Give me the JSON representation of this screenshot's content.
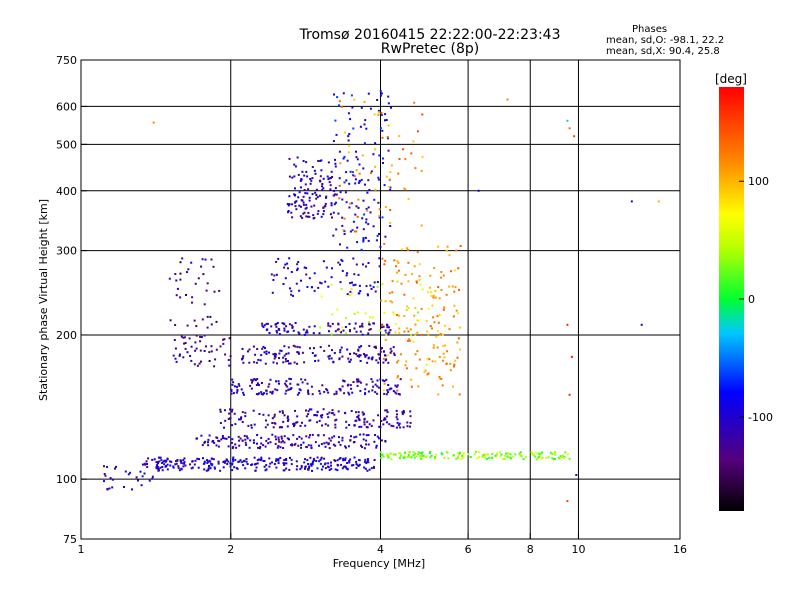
{
  "header": {
    "title_line1": "Tromsø 20160415 22:22:00-22:23:43",
    "title_line2": "RwPretec (8p)"
  },
  "stats": {
    "heading": "Phases",
    "line_o": "mean, sd,O: -98.1, 22.2",
    "line_x": "mean, sd,X:  90.4, 25.8"
  },
  "chart_data": {
    "type": "scatter",
    "xlabel": "Frequency [MHz]",
    "ylabel": "Stationary phase Virtual Height [km]",
    "x_scale": "log",
    "y_scale": "log",
    "xlim": [
      1,
      16
    ],
    "ylim": [
      75,
      750
    ],
    "x_ticks": [
      1,
      2,
      4,
      6,
      8,
      10,
      16
    ],
    "x_tick_labels": [
      "1",
      "2",
      "4",
      "6",
      "8",
      "10",
      "16"
    ],
    "x_grid": [
      2,
      4,
      6,
      8,
      10
    ],
    "y_ticks": [
      75,
      100,
      200,
      300,
      400,
      500,
      600,
      750
    ],
    "y_tick_labels": [
      "75",
      "100",
      "200",
      "300",
      "400",
      "500",
      "600",
      "750"
    ],
    "y_grid": [
      100,
      200,
      300,
      400,
      500,
      600
    ],
    "grid": true,
    "colorbar": {
      "label": "[deg]",
      "range": [
        -180,
        180
      ],
      "ticks": [
        100,
        0,
        -100
      ],
      "tick_labels": [
        "100",
        "0",
        "-100"
      ]
    },
    "clusters": [
      {
        "f": 1.35,
        "f2": 3.9,
        "h": 104,
        "h2": 111,
        "phase": -100,
        "n": 280
      },
      {
        "f": 4.0,
        "f2": 9.6,
        "h": 110,
        "h2": 114,
        "phase": 35,
        "n": 170
      },
      {
        "f": 1.7,
        "f2": 4.1,
        "h": 116,
        "h2": 124,
        "phase": -112,
        "n": 160
      },
      {
        "f": 1.9,
        "f2": 4.6,
        "h": 128,
        "h2": 140,
        "phase": -115,
        "n": 170
      },
      {
        "f": 2.0,
        "f2": 4.4,
        "h": 150,
        "h2": 162,
        "phase": -110,
        "n": 150
      },
      {
        "f": 2.1,
        "f2": 4.3,
        "h": 174,
        "h2": 190,
        "phase": -115,
        "n": 140
      },
      {
        "f": 2.3,
        "f2": 4.2,
        "h": 200,
        "h2": 212,
        "phase": -108,
        "n": 90
      },
      {
        "f": 2.4,
        "f2": 4.0,
        "h": 240,
        "h2": 290,
        "phase": -100,
        "n": 80
      },
      {
        "f": 2.6,
        "f2": 3.3,
        "h": 350,
        "h2": 470,
        "phase": -105,
        "n": 130
      },
      {
        "f": 3.2,
        "f2": 4.2,
        "h": 300,
        "h2": 650,
        "phase": -90,
        "n": 130
      },
      {
        "f": 4.0,
        "f2": 5.8,
        "h": 150,
        "h2": 310,
        "phase": 110,
        "n": 170
      },
      {
        "f": 3.3,
        "f2": 4.9,
        "h": 320,
        "h2": 620,
        "phase": 120,
        "n": 60
      },
      {
        "f": 1.5,
        "f2": 2.0,
        "h": 172,
        "h2": 200,
        "phase": -125,
        "n": 50
      },
      {
        "f": 1.5,
        "f2": 1.9,
        "h": 205,
        "h2": 290,
        "phase": -130,
        "n": 40
      },
      {
        "f": 3.0,
        "f2": 5.0,
        "h": 200,
        "h2": 260,
        "phase": 60,
        "n": 40
      },
      {
        "f": 1.1,
        "f2": 1.4,
        "h": 95,
        "h2": 108,
        "phase": -100,
        "n": 30
      }
    ],
    "isolated_points": [
      {
        "x": 9.5,
        "y": 560,
        "phase": -20
      },
      {
        "x": 9.6,
        "y": 540,
        "phase": 130
      },
      {
        "x": 9.8,
        "y": 520,
        "phase": 150
      },
      {
        "x": 9.5,
        "y": 210,
        "phase": 160
      },
      {
        "x": 9.7,
        "y": 180,
        "phase": 170
      },
      {
        "x": 9.6,
        "y": 150,
        "phase": 160
      },
      {
        "x": 9.5,
        "y": 90,
        "phase": 150
      },
      {
        "x": 9.9,
        "y": 102,
        "phase": -120
      },
      {
        "x": 12.8,
        "y": 380,
        "phase": -100
      },
      {
        "x": 14.5,
        "y": 380,
        "phase": 100
      },
      {
        "x": 13.4,
        "y": 210,
        "phase": -100
      },
      {
        "x": 1.4,
        "y": 555,
        "phase": 120
      },
      {
        "x": 7.2,
        "y": 620,
        "phase": 120
      },
      {
        "x": 6.3,
        "y": 400,
        "phase": -100
      }
    ]
  }
}
